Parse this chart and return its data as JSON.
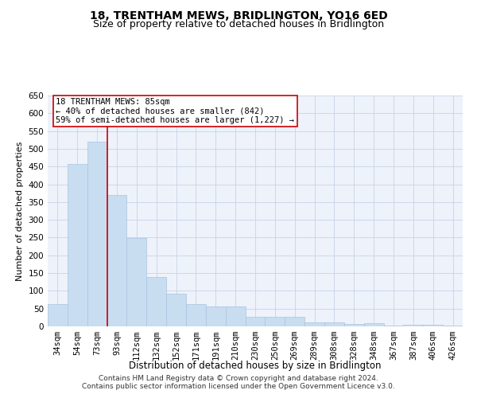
{
  "title": "18, TRENTHAM MEWS, BRIDLINGTON, YO16 6ED",
  "subtitle": "Size of property relative to detached houses in Bridlington",
  "xlabel": "Distribution of detached houses by size in Bridlington",
  "ylabel": "Number of detached properties",
  "bar_color": "#c9ddf0",
  "bar_edge_color": "#a8c4e0",
  "grid_color": "#c8d4e8",
  "background_color": "#eef2fa",
  "categories": [
    "34sqm",
    "54sqm",
    "73sqm",
    "93sqm",
    "112sqm",
    "132sqm",
    "152sqm",
    "171sqm",
    "191sqm",
    "210sqm",
    "230sqm",
    "250sqm",
    "269sqm",
    "289sqm",
    "308sqm",
    "328sqm",
    "348sqm",
    "367sqm",
    "387sqm",
    "406sqm",
    "426sqm"
  ],
  "values": [
    62,
    458,
    520,
    370,
    248,
    140,
    93,
    62,
    57,
    55,
    27,
    26,
    26,
    11,
    12,
    6,
    8,
    3,
    4,
    4,
    3
  ],
  "vline_color": "#cc0000",
  "vline_x": 2.5,
  "annotation_text": "18 TRENTHAM MEWS: 85sqm\n← 40% of detached houses are smaller (842)\n59% of semi-detached houses are larger (1,227) →",
  "annotation_box_color": "white",
  "annotation_box_edge": "#cc0000",
  "ylim": [
    0,
    650
  ],
  "yticks": [
    0,
    50,
    100,
    150,
    200,
    250,
    300,
    350,
    400,
    450,
    500,
    550,
    600,
    650
  ],
  "footer": "Contains HM Land Registry data © Crown copyright and database right 2024.\nContains public sector information licensed under the Open Government Licence v3.0.",
  "title_fontsize": 10,
  "subtitle_fontsize": 9,
  "xlabel_fontsize": 8.5,
  "ylabel_fontsize": 8,
  "tick_fontsize": 7.5,
  "annotation_fontsize": 7.5,
  "footer_fontsize": 6.5
}
